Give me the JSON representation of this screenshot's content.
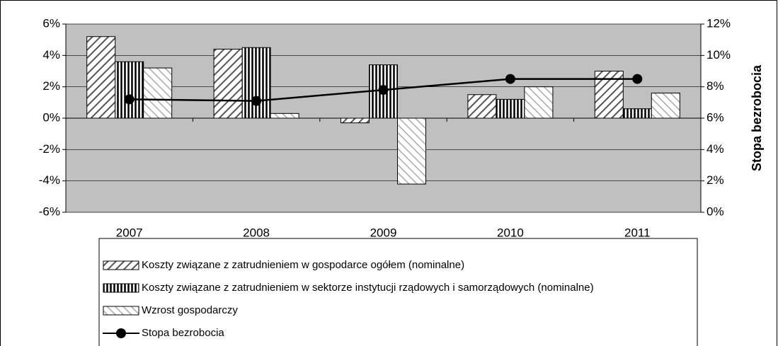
{
  "chart_data": {
    "type": "bar",
    "categories": [
      "2007",
      "2008",
      "2009",
      "2010",
      "2011"
    ],
    "series": [
      {
        "name": "Koszty związane z zatrudnieniem w gospodarce ogółem (nominalne)",
        "color": "#555555",
        "values": [
          5.2,
          4.4,
          -0.3,
          1.5,
          3.0
        ]
      },
      {
        "name": "Koszty związane z zatrudnieniem w sektorze instytucji rządowych i samorządowych (nominalne)",
        "color": "#000000",
        "values": [
          3.6,
          4.5,
          3.4,
          1.2,
          0.6
        ]
      },
      {
        "name": "Wzrost gospodarczy",
        "color": "#999999",
        "values": [
          3.2,
          0.3,
          -4.2,
          2.0,
          1.6
        ]
      },
      {
        "name": "Stopa bezrobocia",
        "color": "#000000",
        "type": "line",
        "axis": "y2",
        "values": [
          7.2,
          7.1,
          7.8,
          8.5,
          8.5
        ]
      }
    ],
    "ylim": [
      -6,
      6
    ],
    "yticks": [
      {
        "value": -6,
        "label": "-6%"
      },
      {
        "value": -4,
        "label": "-4%"
      },
      {
        "value": -2,
        "label": "-2%"
      },
      {
        "value": 0,
        "label": "0%"
      },
      {
        "value": 2,
        "label": "2%"
      },
      {
        "value": 4,
        "label": "4%"
      },
      {
        "value": 6,
        "label": "6%"
      }
    ],
    "y2lim": [
      0,
      12
    ],
    "y2ticks": [
      {
        "value": 0,
        "label": "0%"
      },
      {
        "value": 2,
        "label": "2%"
      },
      {
        "value": 4,
        "label": "4%"
      },
      {
        "value": 6,
        "label": "6%"
      },
      {
        "value": 8,
        "label": "8%"
      },
      {
        "value": 10,
        "label": "10%"
      },
      {
        "value": 12,
        "label": "12%"
      }
    ],
    "y2label": "Stopa bezrobocia",
    "grid": true,
    "legend": "bottom"
  }
}
